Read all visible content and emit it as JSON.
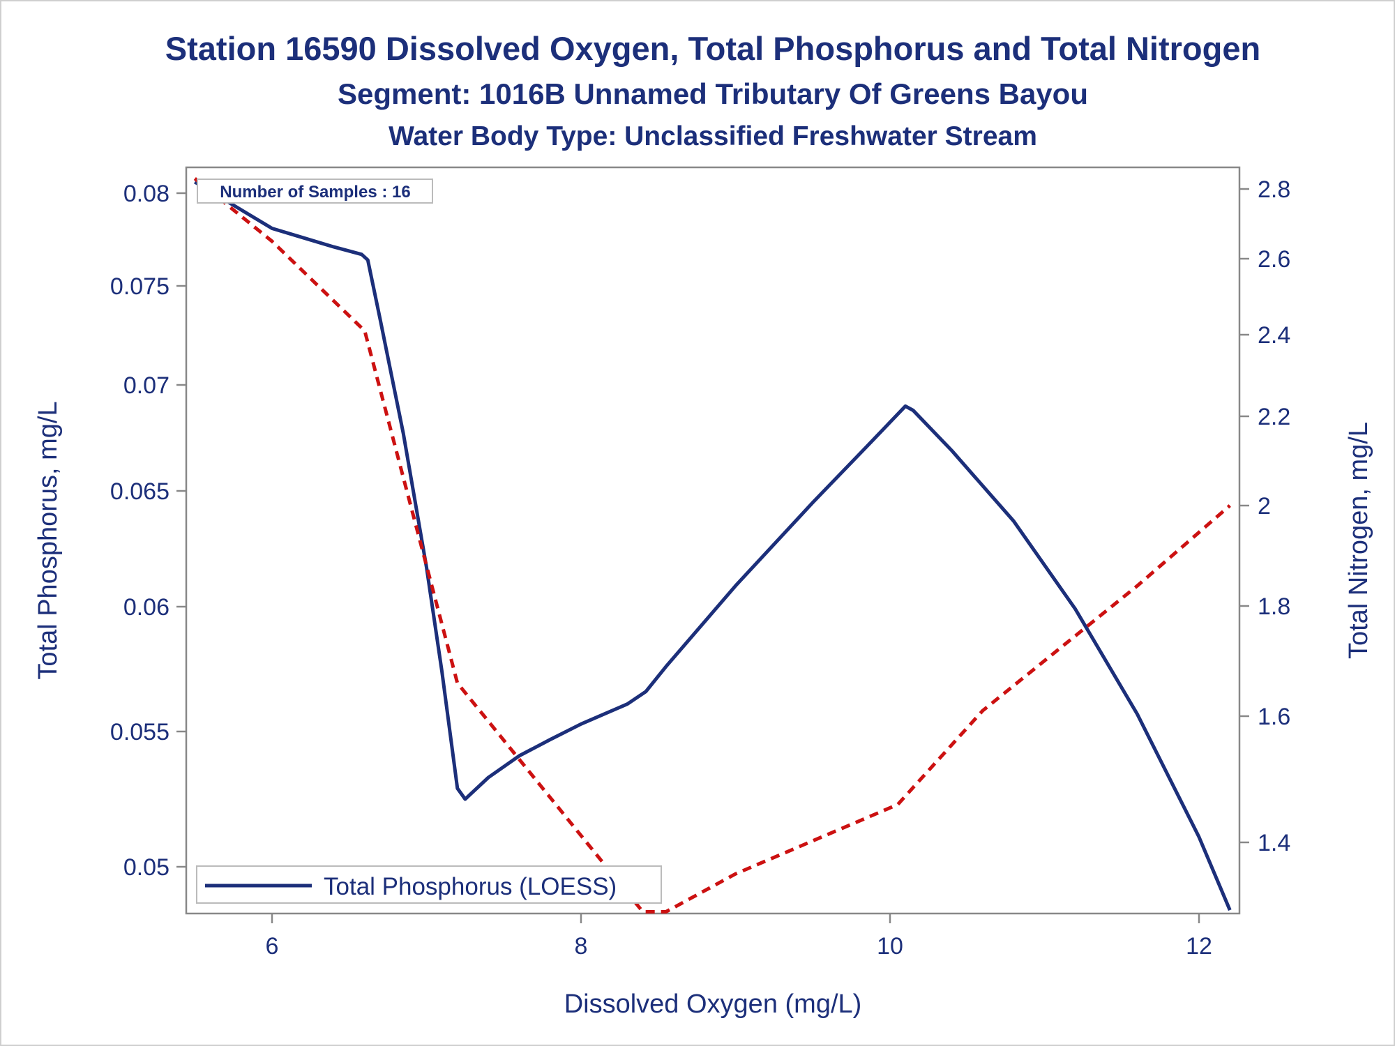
{
  "chart_data": {
    "type": "line",
    "title": "Station 16590  Dissolved Oxygen, Total Phosphorus and Total Nitrogen",
    "subtitle": "Segment: 1016B  Unnamed Tributary Of Greens Bayou",
    "subtitle2": "Water Body Type: Unclassified Freshwater Stream",
    "xlabel": "Dissolved Oxygen (mg/L)",
    "ylabel": "Total Phosphorus, mg/L",
    "y2label": "Total Nitrogen, mg/L",
    "inset_label": "Number of Samples : 16",
    "xlim": [
      5.45,
      12.3
    ],
    "xticks": [
      6,
      8,
      10,
      12
    ],
    "yticks": [
      0.05,
      0.055,
      0.06,
      0.065,
      0.07,
      0.075,
      0.08
    ],
    "y2ticks": [
      1.4,
      1.6,
      1.8,
      2,
      2.2,
      2.4,
      2.6,
      2.8
    ],
    "grid": false,
    "legend_position": "bottom-left",
    "series": [
      {
        "name": "Total Phosphorus (LOESS)",
        "axis": "left",
        "style": "solid",
        "color": "#1c2f7a",
        "points": [
          [
            5.5,
            0.0806
          ],
          [
            5.8,
            0.0791
          ],
          [
            6.0,
            0.0781
          ],
          [
            6.2,
            0.0776
          ],
          [
            6.4,
            0.0771
          ],
          [
            6.58,
            0.0767
          ],
          [
            6.62,
            0.0764
          ],
          [
            6.7,
            0.0733
          ],
          [
            6.85,
            0.0677
          ],
          [
            7.0,
            0.0617
          ],
          [
            7.1,
            0.0574
          ],
          [
            7.2,
            0.0529
          ],
          [
            7.25,
            0.0525
          ],
          [
            7.4,
            0.0533
          ],
          [
            7.6,
            0.0541
          ],
          [
            7.8,
            0.0547
          ],
          [
            8.0,
            0.0553
          ],
          [
            8.3,
            0.0561
          ],
          [
            8.42,
            0.0566
          ],
          [
            8.55,
            0.0576
          ],
          [
            9.0,
            0.0609
          ],
          [
            9.5,
            0.0645
          ],
          [
            9.85,
            0.0671
          ],
          [
            10.1,
            0.069
          ],
          [
            10.15,
            0.0688
          ],
          [
            10.4,
            0.0669
          ],
          [
            10.8,
            0.0637
          ],
          [
            11.2,
            0.0599
          ],
          [
            11.6,
            0.0557
          ],
          [
            12.0,
            0.0511
          ],
          [
            12.2,
            0.0484
          ]
        ]
      },
      {
        "name": "Total Nitrogen",
        "axis": "right",
        "style": "dashed",
        "color": "#cc1111",
        "points": [
          [
            5.5,
            2.83
          ],
          [
            6.0,
            2.65
          ],
          [
            6.6,
            2.41
          ],
          [
            7.2,
            1.66
          ],
          [
            8.4,
            1.29
          ],
          [
            8.55,
            1.29
          ],
          [
            9.0,
            1.35
          ],
          [
            10.05,
            1.46
          ],
          [
            10.6,
            1.61
          ],
          [
            11.6,
            1.84
          ],
          [
            12.2,
            2.0
          ]
        ]
      }
    ]
  }
}
